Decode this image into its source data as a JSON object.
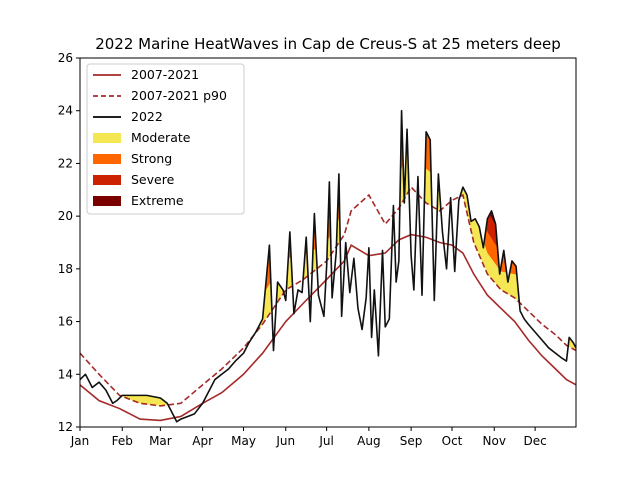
{
  "chart_data": {
    "type": "area",
    "title": "2022 Marine HeatWaves in Cap de Creus-S at 25 meters deep",
    "xlabel": "",
    "ylabel": "",
    "x_unit": "day of year 2022",
    "xlim": [
      1,
      365
    ],
    "ylim": [
      12,
      26
    ],
    "yticks": [
      12,
      14,
      16,
      18,
      20,
      22,
      24,
      26
    ],
    "xticks": [
      {
        "label": "Jan",
        "day": 1
      },
      {
        "label": "Feb",
        "day": 32
      },
      {
        "label": "Mar",
        "day": 60
      },
      {
        "label": "Apr",
        "day": 91
      },
      {
        "label": "May",
        "day": 121
      },
      {
        "label": "Jun",
        "day": 152
      },
      {
        "label": "Jul",
        "day": 182
      },
      {
        "label": "Aug",
        "day": 213
      },
      {
        "label": "Sep",
        "day": 244
      },
      {
        "label": "Oct",
        "day": 274
      },
      {
        "label": "Nov",
        "day": 305
      },
      {
        "label": "Dec",
        "day": 335
      }
    ],
    "grid": false,
    "legend_position": "upper-left",
    "legend": [
      {
        "label": "2007-2021",
        "kind": "line",
        "color": "#a52a2a",
        "dash": "solid"
      },
      {
        "label": "2007-2021 p90",
        "kind": "line",
        "color": "#a52a2a",
        "dash": "dashed"
      },
      {
        "label": "2022",
        "kind": "line",
        "color": "#000000",
        "dash": "solid"
      },
      {
        "label": "Moderate",
        "kind": "patch",
        "color": "#f5e653"
      },
      {
        "label": "Strong",
        "kind": "patch",
        "color": "#ff6600"
      },
      {
        "label": "Severe",
        "kind": "patch",
        "color": "#cc2200"
      },
      {
        "label": "Extreme",
        "kind": "patch",
        "color": "#7a0000"
      }
    ],
    "series": [
      {
        "name": "2007-2021",
        "x": [
          1,
          15,
          30,
          45,
          60,
          75,
          91,
          105,
          121,
          135,
          152,
          165,
          182,
          195,
          200,
          213,
          225,
          235,
          244,
          255,
          265,
          274,
          282,
          290,
          300,
          310,
          320,
          330,
          340,
          350,
          358,
          365
        ],
        "values": [
          13.6,
          13.0,
          12.7,
          12.3,
          12.25,
          12.4,
          12.9,
          13.3,
          14.0,
          14.8,
          16.0,
          16.7,
          17.6,
          18.3,
          18.9,
          18.5,
          18.6,
          19.1,
          19.3,
          19.2,
          19.0,
          18.9,
          18.6,
          17.8,
          17.0,
          16.5,
          16.0,
          15.3,
          14.7,
          14.2,
          13.8,
          13.6
        ]
      },
      {
        "name": "2007-2021 p90",
        "x": [
          1,
          15,
          30,
          45,
          60,
          75,
          91,
          105,
          121,
          135,
          152,
          165,
          182,
          195,
          200,
          213,
          225,
          235,
          244,
          255,
          265,
          274,
          282,
          290,
          300,
          310,
          320,
          330,
          340,
          350,
          358,
          365
        ],
        "values": [
          14.8,
          14.0,
          13.2,
          12.9,
          12.8,
          12.9,
          13.6,
          14.2,
          15.0,
          15.9,
          17.2,
          17.6,
          18.3,
          19.3,
          20.2,
          20.8,
          19.7,
          20.3,
          21.1,
          20.5,
          20.2,
          20.6,
          20.8,
          19.0,
          17.8,
          17.2,
          16.9,
          16.4,
          15.9,
          15.5,
          15.1,
          14.9
        ]
      },
      {
        "name": "2022",
        "x": [
          1,
          5,
          10,
          15,
          20,
          25,
          28,
          32,
          40,
          50,
          60,
          65,
          72,
          75,
          80,
          85,
          91,
          95,
          100,
          105,
          110,
          115,
          121,
          125,
          130,
          135,
          140,
          143,
          146,
          150,
          152,
          155,
          158,
          161,
          164,
          167,
          170,
          173,
          176,
          180,
          182,
          184,
          186,
          189,
          191,
          193,
          196,
          199,
          202,
          205,
          208,
          211,
          213,
          215,
          217,
          220,
          223,
          225,
          228,
          231,
          233,
          235,
          237,
          239,
          241,
          244,
          246,
          249,
          252,
          255,
          258,
          261,
          264,
          267,
          270,
          273,
          276,
          279,
          282,
          285,
          288,
          291,
          294,
          297,
          300,
          303,
          306,
          309,
          312,
          315,
          318,
          321,
          324,
          327,
          330,
          335,
          340,
          345,
          350,
          355,
          358,
          360,
          363,
          365
        ],
        "values": [
          13.8,
          14.0,
          13.5,
          13.7,
          13.4,
          12.9,
          13.0,
          13.2,
          13.2,
          13.2,
          13.1,
          12.9,
          12.2,
          12.3,
          12.4,
          12.5,
          12.9,
          13.3,
          13.8,
          14.0,
          14.2,
          14.5,
          14.8,
          15.2,
          15.6,
          16.1,
          18.9,
          14.9,
          17.5,
          17.2,
          16.8,
          19.4,
          16.3,
          17.2,
          17.1,
          19.2,
          16.0,
          20.1,
          17.0,
          16.2,
          18.1,
          21.3,
          16.9,
          18.6,
          21.6,
          16.2,
          19.0,
          17.1,
          18.4,
          16.5,
          15.7,
          16.9,
          18.8,
          15.4,
          17.2,
          14.7,
          18.7,
          15.8,
          16.1,
          20.4,
          17.5,
          18.3,
          24.0,
          20.5,
          23.3,
          18.5,
          17.2,
          21.5,
          17.0,
          23.2,
          22.9,
          16.8,
          21.6,
          19.4,
          18.0,
          20.7,
          17.9,
          20.6,
          21.1,
          20.8,
          19.8,
          19.9,
          19.6,
          18.8,
          19.9,
          20.2,
          19.7,
          17.8,
          18.7,
          17.5,
          18.3,
          18.1,
          16.4,
          16.1,
          15.9,
          15.6,
          15.3,
          15.0,
          14.8,
          14.6,
          14.5,
          15.4,
          15.2,
          15.0
        ]
      }
    ]
  }
}
